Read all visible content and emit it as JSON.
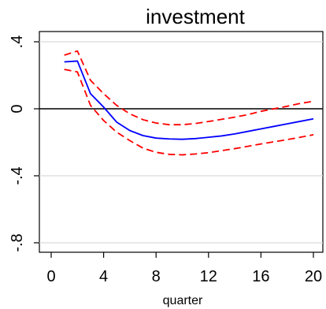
{
  "chart_data": {
    "type": "line",
    "title": "investment",
    "xlabel": "quarter",
    "ylabel": "",
    "xlim": [
      0,
      20
    ],
    "ylim": [
      -0.8,
      0.4
    ],
    "xticks": [
      0,
      4,
      8,
      12,
      16,
      20
    ],
    "xtick_labels": [
      "0",
      "4",
      "8",
      "12",
      "16",
      "20"
    ],
    "yticks": [
      0.4,
      0,
      -0.4,
      -0.8
    ],
    "ytick_labels": [
      ".4",
      "0",
      "-.4",
      "-.8"
    ],
    "grid": true,
    "zero_line": true,
    "x": [
      1,
      2,
      3,
      4,
      5,
      6,
      7,
      8,
      9,
      10,
      11,
      12,
      13,
      14,
      15,
      16,
      17,
      18,
      19,
      20
    ],
    "series": [
      {
        "role": "estimate",
        "color": "#0000ff",
        "style": "solid",
        "values": [
          0.28,
          0.285,
          0.09,
          0.01,
          -0.08,
          -0.13,
          -0.16,
          -0.175,
          -0.18,
          -0.182,
          -0.178,
          -0.17,
          -0.162,
          -0.15,
          -0.135,
          -0.12,
          -0.105,
          -0.09,
          -0.075,
          -0.06
        ]
      },
      {
        "role": "upper band",
        "color": "#ff0000",
        "style": "dashed",
        "values": [
          0.32,
          0.345,
          0.17,
          0.09,
          0.02,
          -0.03,
          -0.065,
          -0.085,
          -0.095,
          -0.095,
          -0.088,
          -0.076,
          -0.063,
          -0.05,
          -0.035,
          -0.015,
          0.0,
          0.015,
          0.032,
          0.045
        ]
      },
      {
        "role": "lower band",
        "color": "#ff0000",
        "style": "dashed",
        "values": [
          0.235,
          0.22,
          0.02,
          -0.07,
          -0.14,
          -0.19,
          -0.235,
          -0.26,
          -0.272,
          -0.275,
          -0.27,
          -0.262,
          -0.25,
          -0.238,
          -0.224,
          -0.21,
          -0.197,
          -0.184,
          -0.17,
          -0.155
        ]
      }
    ]
  }
}
